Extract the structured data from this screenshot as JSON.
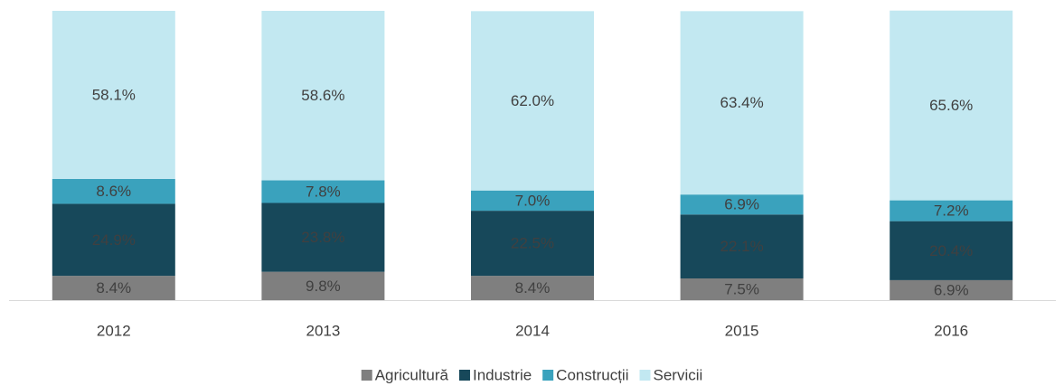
{
  "chart_data": {
    "type": "stacked_bar",
    "categories": [
      "2012",
      "2013",
      "2014",
      "2015",
      "2016"
    ],
    "ylim": [
      0,
      100
    ],
    "legend": "bottom",
    "series": [
      {
        "name": "Agricultură",
        "color": "#7f7f7f",
        "values": [
          8.4,
          9.8,
          8.4,
          7.5,
          6.9
        ],
        "value_labels": [
          "8.4%",
          "9.8%",
          "8.4%",
          "7.5%",
          "6.9%"
        ]
      },
      {
        "name": "Industrie",
        "color": "#17485a",
        "values": [
          24.9,
          23.8,
          22.5,
          22.1,
          20.4
        ],
        "value_labels": [
          "24.9%",
          "23.8%",
          "22.5%",
          "22.1%",
          "20.4%"
        ]
      },
      {
        "name": "Construcții",
        "color": "#3aa2bd",
        "values": [
          8.6,
          7.8,
          7.0,
          6.9,
          7.2
        ],
        "value_labels": [
          "8.6%",
          "7.8%",
          "7.0%",
          "6.9%",
          "7.2%"
        ]
      },
      {
        "name": "Servicii",
        "color": "#c2e8f1",
        "values": [
          58.1,
          58.6,
          62.0,
          63.4,
          65.6
        ],
        "value_labels": [
          "58.1%",
          "58.6%",
          "62.0%",
          "63.4%",
          "65.6%"
        ]
      }
    ]
  }
}
